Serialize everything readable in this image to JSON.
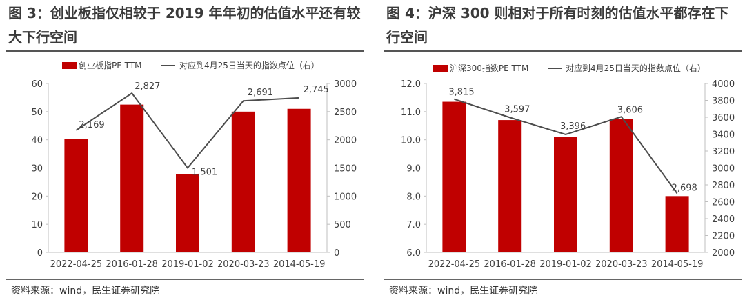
{
  "figures": [
    {
      "title": "图 3：创业板指仅相较于 2019 年年初的估值水平还有较大下行空间",
      "source": "资料来源：wind，民生证券研究院"
    },
    {
      "title": "图 4：沪深 300 则相对于所有时刻的估值水平都存在下行空间",
      "source": "资料来源：wind，民生证券研究院"
    }
  ],
  "chart_data": [
    {
      "type": "bar",
      "title": "",
      "categories": [
        "2022-04-25",
        "2016-01-28",
        "2019-01-02",
        "2020-03-23",
        "2014-05-19"
      ],
      "series": [
        {
          "name": "创业板指PE TTM",
          "type": "bar",
          "axis": "left",
          "color": "#c00000",
          "values": [
            40.3,
            52.5,
            27.9,
            50.0,
            51.0
          ]
        },
        {
          "name": "对应到4月25日当天的指数点位（右）",
          "type": "line",
          "axis": "right",
          "color": "#4d4d4d",
          "values": [
            2169,
            2827,
            1501,
            2691,
            2745
          ],
          "labels": [
            "2,169",
            "2,827",
            "1,501",
            "2,691",
            "2,745"
          ]
        }
      ],
      "y_left": {
        "min": 0,
        "max": 60,
        "ticks": [
          "0",
          "10",
          "20",
          "30",
          "40",
          "50",
          "60"
        ]
      },
      "y_right": {
        "min": 0,
        "max": 3000,
        "ticks": [
          "0",
          "500",
          "1000",
          "1500",
          "2000",
          "2500",
          "3000"
        ]
      },
      "grid": false,
      "legend": "top-center"
    },
    {
      "type": "bar",
      "title": "",
      "categories": [
        "2022-04-25",
        "2016-01-28",
        "2019-01-02",
        "2020-03-23",
        "2014-05-19"
      ],
      "series": [
        {
          "name": "沪深300指数PE TTM",
          "type": "bar",
          "axis": "left",
          "color": "#c00000",
          "values": [
            11.35,
            10.7,
            10.1,
            10.75,
            8.0
          ]
        },
        {
          "name": "对应到4月25日当天的指数点位（右）",
          "type": "line",
          "axis": "right",
          "color": "#4d4d4d",
          "values": [
            3815,
            3597,
            3396,
            3606,
            2698
          ],
          "labels": [
            "3,815",
            "3,597",
            "3,396",
            "3,606",
            "2,698"
          ]
        }
      ],
      "y_left": {
        "min": 6.0,
        "max": 12.0,
        "ticks": [
          "6.0",
          "7.0",
          "8.0",
          "9.0",
          "10.0",
          "11.0",
          "12.0"
        ]
      },
      "y_right": {
        "min": 2000,
        "max": 4000,
        "ticks": [
          "2000",
          "2200",
          "2400",
          "2600",
          "2800",
          "3000",
          "3200",
          "3400",
          "3600",
          "3800",
          "4000"
        ]
      },
      "grid": false,
      "legend": "top-center"
    }
  ]
}
